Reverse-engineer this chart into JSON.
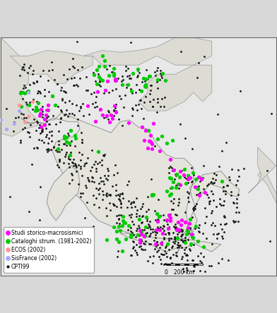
{
  "title": "",
  "background_color": "#d8d8d8",
  "map_background": "#e8e8e8",
  "legend_items": [
    {
      "label": "Studi storico-macrosismici",
      "color": "#ff00ff",
      "size": 6
    },
    {
      "label": "Cataloghi strum. (1981-2002)",
      "color": "#00cc00",
      "size": 6
    },
    {
      "label": "ECOS (2002)",
      "color": "#ff9999",
      "size": 6
    },
    {
      "label": "SisFrance (2002)",
      "color": "#aaaaff",
      "size": 6
    },
    {
      "label": "CPTI99",
      "color": "#111111",
      "size": 4
    }
  ],
  "scalebar_text": "200 km",
  "xlim": [
    5.5,
    20.5
  ],
  "ylim": [
    35.5,
    48.5
  ],
  "figsize": [
    3.92,
    4.44
  ],
  "dpi": 100
}
